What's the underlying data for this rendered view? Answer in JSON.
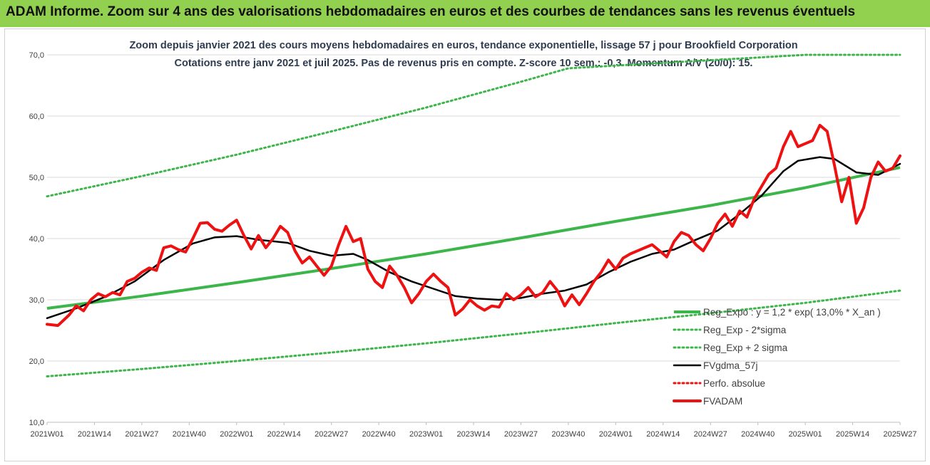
{
  "banner": {
    "title": "ADAM Informe. Zoom sur 4 ans des valorisations hebdomadaires en euros et des courbes de tendances sans les revenus éventuels"
  },
  "colors": {
    "banner_bg": "#92d050",
    "trend": "#3cb54a",
    "fvgdma": "#000000",
    "fvadam": "#ee1111",
    "perfo": "#ee1111"
  },
  "chart_data": {
    "type": "line",
    "title": "Zoom depuis janvier 2021 des cours moyens hebdomadaires en euros, tendance exponentielle, lissage 57 j pour Brookfield Corporation",
    "subtitle": "Cotations entre janv 2021 et juil 2025. Pas de revenus pris en compte. Z-score 10 sem.: -0,3. Momentum A/V (20/0): 15.",
    "xlabel": "",
    "ylabel": "",
    "ylim": [
      10,
      70
    ],
    "yticks": [
      "10,0",
      "20,0",
      "30,0",
      "40,0",
      "50,0",
      "60,0",
      "70,0"
    ],
    "xlim": [
      0,
      234
    ],
    "xticks": [
      {
        "i": 0,
        "label": "2021W01"
      },
      {
        "i": 13,
        "label": "2021W14"
      },
      {
        "i": 26,
        "label": "2021W27"
      },
      {
        "i": 39,
        "label": "2021W40"
      },
      {
        "i": 52,
        "label": "2022W01"
      },
      {
        "i": 65,
        "label": "2022W14"
      },
      {
        "i": 78,
        "label": "2022W27"
      },
      {
        "i": 91,
        "label": "2022W40"
      },
      {
        "i": 104,
        "label": "2023W01"
      },
      {
        "i": 117,
        "label": "2023W14"
      },
      {
        "i": 130,
        "label": "2023W27"
      },
      {
        "i": 143,
        "label": "2023W40"
      },
      {
        "i": 156,
        "label": "2024W01"
      },
      {
        "i": 169,
        "label": "2024W14"
      },
      {
        "i": 182,
        "label": "2024W27"
      },
      {
        "i": 195,
        "label": "2024W40"
      },
      {
        "i": 208,
        "label": "2025W01"
      },
      {
        "i": 221,
        "label": "2025W14"
      },
      {
        "i": 234,
        "label": "2025W27"
      }
    ],
    "grid": "horizontal",
    "legend_position": "bottom-right",
    "series": [
      {
        "name": "Reg_Expo : y = 1,2 * exp( 13,0% *  X_an )",
        "style": "solid",
        "color": "#3cb54a",
        "points": [
          [
            0,
            28.6
          ],
          [
            26,
            30.6
          ],
          [
            52,
            32.8
          ],
          [
            78,
            35.1
          ],
          [
            104,
            37.5
          ],
          [
            130,
            40.1
          ],
          [
            156,
            42.8
          ],
          [
            182,
            45.4
          ],
          [
            208,
            48.3
          ],
          [
            234,
            51.6
          ]
        ]
      },
      {
        "name": "Reg_Exp - 2*sigma",
        "style": "dotted",
        "color": "#3cb54a",
        "points": [
          [
            0,
            17.5
          ],
          [
            26,
            18.7
          ],
          [
            52,
            20.0
          ],
          [
            78,
            21.4
          ],
          [
            104,
            22.9
          ],
          [
            130,
            24.5
          ],
          [
            156,
            26.2
          ],
          [
            182,
            27.8
          ],
          [
            208,
            29.5
          ],
          [
            234,
            31.5
          ]
        ]
      },
      {
        "name": "Reg_Exp + 2 sigma",
        "style": "dotted",
        "color": "#3cb54a",
        "points": [
          [
            0,
            46.9
          ],
          [
            26,
            50.2
          ],
          [
            52,
            53.7
          ],
          [
            78,
            57.5
          ],
          [
            104,
            61.4
          ],
          [
            130,
            65.6
          ],
          [
            143,
            67.8
          ],
          [
            208,
            70.0
          ],
          [
            234,
            70.0
          ]
        ]
      },
      {
        "name": "FVgdma_57j",
        "style": "solid",
        "color": "#000000",
        "points": [
          [
            0,
            27.0
          ],
          [
            8,
            28.6
          ],
          [
            16,
            30.5
          ],
          [
            24,
            33.0
          ],
          [
            32,
            36.5
          ],
          [
            40,
            39.2
          ],
          [
            46,
            40.2
          ],
          [
            52,
            40.4
          ],
          [
            58,
            39.8
          ],
          [
            66,
            39.3
          ],
          [
            72,
            38.0
          ],
          [
            78,
            37.2
          ],
          [
            84,
            37.5
          ],
          [
            88,
            36.5
          ],
          [
            94,
            34.5
          ],
          [
            100,
            33.0
          ],
          [
            106,
            31.8
          ],
          [
            112,
            30.6
          ],
          [
            118,
            30.2
          ],
          [
            124,
            30.0
          ],
          [
            130,
            30.3
          ],
          [
            136,
            31.0
          ],
          [
            142,
            31.5
          ],
          [
            148,
            32.5
          ],
          [
            154,
            34.5
          ],
          [
            160,
            36.2
          ],
          [
            166,
            37.5
          ],
          [
            172,
            38.2
          ],
          [
            178,
            39.8
          ],
          [
            184,
            41.3
          ],
          [
            190,
            44.0
          ],
          [
            196,
            47.0
          ],
          [
            202,
            51.0
          ],
          [
            206,
            52.7
          ],
          [
            212,
            53.3
          ],
          [
            216,
            53.0
          ],
          [
            222,
            50.8
          ],
          [
            228,
            50.4
          ],
          [
            234,
            52.2
          ]
        ]
      },
      {
        "name": "Perfo. absolue",
        "style": "dotted",
        "color": "#ee1111",
        "points": []
      },
      {
        "name": "FVADAM",
        "style": "solid",
        "color": "#ee1111",
        "points": [
          [
            0,
            26.0
          ],
          [
            3,
            25.8
          ],
          [
            6,
            27.5
          ],
          [
            8,
            29.0
          ],
          [
            10,
            28.2
          ],
          [
            12,
            30.0
          ],
          [
            14,
            31.0
          ],
          [
            16,
            30.5
          ],
          [
            18,
            31.2
          ],
          [
            20,
            30.8
          ],
          [
            22,
            33.0
          ],
          [
            24,
            33.5
          ],
          [
            26,
            34.5
          ],
          [
            28,
            35.2
          ],
          [
            30,
            34.8
          ],
          [
            32,
            38.5
          ],
          [
            34,
            38.8
          ],
          [
            36,
            38.2
          ],
          [
            38,
            37.8
          ],
          [
            40,
            40.0
          ],
          [
            42,
            42.5
          ],
          [
            44,
            42.6
          ],
          [
            46,
            41.5
          ],
          [
            48,
            41.2
          ],
          [
            50,
            42.2
          ],
          [
            52,
            43.0
          ],
          [
            54,
            40.5
          ],
          [
            56,
            38.3
          ],
          [
            58,
            40.5
          ],
          [
            60,
            38.5
          ],
          [
            62,
            40.0
          ],
          [
            64,
            42.0
          ],
          [
            66,
            41.0
          ],
          [
            68,
            38.0
          ],
          [
            70,
            36.0
          ],
          [
            72,
            37.0
          ],
          [
            74,
            35.5
          ],
          [
            76,
            34.0
          ],
          [
            78,
            35.5
          ],
          [
            80,
            39.0
          ],
          [
            82,
            42.0
          ],
          [
            84,
            39.5
          ],
          [
            86,
            40.0
          ],
          [
            88,
            35.0
          ],
          [
            90,
            33.0
          ],
          [
            92,
            32.0
          ],
          [
            94,
            35.5
          ],
          [
            96,
            34.0
          ],
          [
            98,
            32.0
          ],
          [
            100,
            29.5
          ],
          [
            102,
            31.0
          ],
          [
            104,
            33.0
          ],
          [
            106,
            34.2
          ],
          [
            108,
            33.0
          ],
          [
            110,
            32.0
          ],
          [
            112,
            27.5
          ],
          [
            114,
            28.5
          ],
          [
            116,
            30.0
          ],
          [
            118,
            29.0
          ],
          [
            120,
            28.3
          ],
          [
            122,
            29.0
          ],
          [
            124,
            28.8
          ],
          [
            126,
            31.0
          ],
          [
            128,
            30.0
          ],
          [
            130,
            30.8
          ],
          [
            132,
            32.0
          ],
          [
            134,
            30.5
          ],
          [
            136,
            31.2
          ],
          [
            138,
            33.0
          ],
          [
            140,
            31.5
          ],
          [
            142,
            29.0
          ],
          [
            144,
            30.8
          ],
          [
            146,
            29.2
          ],
          [
            148,
            31.0
          ],
          [
            150,
            33.0
          ],
          [
            152,
            34.5
          ],
          [
            154,
            36.5
          ],
          [
            156,
            35.0
          ],
          [
            158,
            36.8
          ],
          [
            160,
            37.5
          ],
          [
            162,
            38.0
          ],
          [
            164,
            38.5
          ],
          [
            166,
            39.0
          ],
          [
            168,
            38.0
          ],
          [
            170,
            37.0
          ],
          [
            172,
            39.5
          ],
          [
            174,
            41.0
          ],
          [
            176,
            40.5
          ],
          [
            178,
            39.0
          ],
          [
            180,
            38.0
          ],
          [
            182,
            40.0
          ],
          [
            184,
            42.5
          ],
          [
            186,
            44.0
          ],
          [
            188,
            42.0
          ],
          [
            190,
            44.5
          ],
          [
            192,
            43.5
          ],
          [
            194,
            46.5
          ],
          [
            196,
            48.5
          ],
          [
            198,
            50.5
          ],
          [
            200,
            51.5
          ],
          [
            202,
            55.0
          ],
          [
            204,
            57.5
          ],
          [
            206,
            55.0
          ],
          [
            208,
            55.5
          ],
          [
            210,
            56.0
          ],
          [
            212,
            58.5
          ],
          [
            214,
            57.5
          ],
          [
            216,
            52.0
          ],
          [
            218,
            46.0
          ],
          [
            220,
            50.0
          ],
          [
            222,
            42.5
          ],
          [
            224,
            45.0
          ],
          [
            226,
            50.0
          ],
          [
            228,
            52.5
          ],
          [
            230,
            51.0
          ],
          [
            232,
            51.5
          ],
          [
            234,
            53.5
          ]
        ]
      }
    ]
  }
}
